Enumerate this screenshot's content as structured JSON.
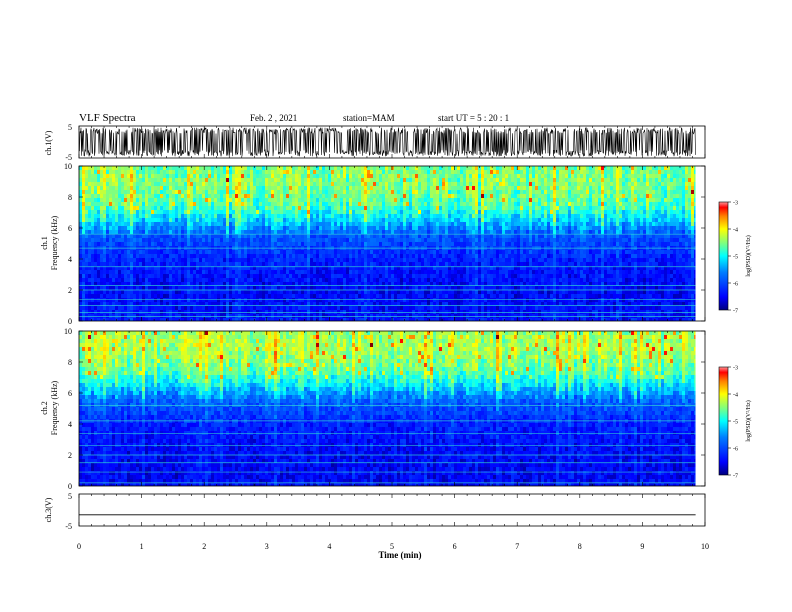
{
  "header": {
    "title": "VLF Spectra",
    "date": "Feb. 2 , 2021",
    "station": "station=MAM",
    "start": "start UT = 5 : 20 : 1"
  },
  "chart_data": [
    {
      "type": "line",
      "panel": "ch1-waveform",
      "ylabel": "ch.1(V)",
      "yticks": [
        "5",
        "-5"
      ],
      "ylim": [
        -5,
        5
      ],
      "xlim": [
        0,
        10
      ],
      "description_series": "dense oscillating voltage signal, amplitude about ±4 V, spanning 0–9.85 min"
    },
    {
      "type": "heatmap",
      "panel": "ch1-spectrogram",
      "ylabel": "ch.1 Frequency (kHz)",
      "yticks": [
        "0",
        "2",
        "4",
        "6",
        "8",
        "10"
      ],
      "ylim": [
        0,
        10
      ],
      "xlim": [
        0,
        10
      ],
      "data_extent_min": 9.85,
      "colorbar": {
        "label": "log(PSD)(V²/Hz)",
        "ticks": [
          "-3",
          "-4",
          "-5",
          "-6",
          "-7"
        ],
        "range": [
          -7,
          -3
        ]
      },
      "band_profile": [
        {
          "freq_khz": 0,
          "log_psd": -6.4
        },
        {
          "freq_khz": 2,
          "log_psd": -6.5
        },
        {
          "freq_khz": 4,
          "log_psd": -6.3
        },
        {
          "freq_khz": 5.5,
          "log_psd": -5.9
        },
        {
          "freq_khz": 6.5,
          "log_psd": -5.2
        },
        {
          "freq_khz": 7.5,
          "log_psd": -4.7
        },
        {
          "freq_khz": 9,
          "log_psd": -4.5
        },
        {
          "freq_khz": 10,
          "log_psd": -4.6
        }
      ],
      "horizontal_lines_khz": [
        0.3,
        0.55,
        1.0,
        1.4,
        2.0,
        2.3,
        3.5,
        4.7,
        5.6
      ]
    },
    {
      "type": "heatmap",
      "panel": "ch2-spectrogram",
      "ylabel": "ch.2 Frequency (kHz)",
      "yticks": [
        "0",
        "2",
        "4",
        "6",
        "8",
        "10"
      ],
      "ylim": [
        0,
        10
      ],
      "xlim": [
        0,
        10
      ],
      "data_extent_min": 9.85,
      "colorbar": {
        "label": "log(PSD)(V²/Hz)",
        "ticks": [
          "-3",
          "-4",
          "-5",
          "-6",
          "-7"
        ],
        "range": [
          -7,
          -3
        ]
      },
      "band_profile": [
        {
          "freq_khz": 0,
          "log_psd": -6.5
        },
        {
          "freq_khz": 2,
          "log_psd": -6.5
        },
        {
          "freq_khz": 4,
          "log_psd": -6.3
        },
        {
          "freq_khz": 5.5,
          "log_psd": -5.8
        },
        {
          "freq_khz": 6.5,
          "log_psd": -5.1
        },
        {
          "freq_khz": 7.5,
          "log_psd": -4.6
        },
        {
          "freq_khz": 9,
          "log_psd": -4.3
        },
        {
          "freq_khz": 10,
          "log_psd": -4.4
        }
      ],
      "horizontal_lines_khz": [
        0.2,
        0.9,
        1.5,
        2.0,
        2.6,
        3.4,
        4.2,
        5.2
      ]
    },
    {
      "type": "line",
      "panel": "ch3-waveform",
      "ylabel": "ch.3(V)",
      "yticks": [
        "5",
        "-5"
      ],
      "ylim": [
        -5,
        5
      ],
      "xlim": [
        0,
        10
      ],
      "series": [
        {
          "x": [
            0,
            9.85
          ],
          "y": [
            -1.5,
            -1.5
          ]
        }
      ]
    }
  ],
  "xaxis": {
    "label": "Time (min)",
    "ticks": [
      "0",
      "1",
      "2",
      "3",
      "4",
      "5",
      "6",
      "7",
      "8",
      "9",
      "10"
    ]
  },
  "colors": {
    "waveform": "#000000",
    "colormap": [
      "#00007f",
      "#0000ff",
      "#007fff",
      "#00ffff",
      "#7fff7f",
      "#ffff00",
      "#ff7f00",
      "#ff0000",
      "#7f0000"
    ]
  }
}
